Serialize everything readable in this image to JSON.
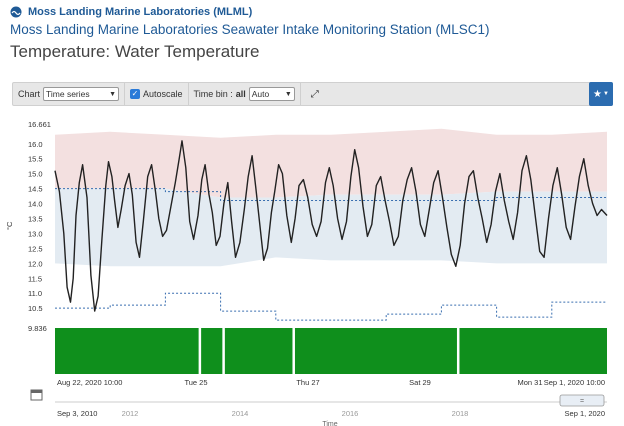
{
  "header": {
    "org_name": "Moss Landing Marine Laboratories (MLML)",
    "station_title": "Moss Landing Marine Laboratories Seawater Intake Monitoring Station (MLSC1)",
    "page_title": "Temperature: Water Temperature"
  },
  "toolbar": {
    "chart_label": "Chart",
    "chart_selected": "Time series",
    "autoscale_label": "Autoscale",
    "autoscale_checked": true,
    "time_bin_label": "Time bin :",
    "time_bin_all": "all",
    "time_bin_selected": "Auto",
    "expand_icon": "expand-arrows-icon",
    "star_icon": "star-icon"
  },
  "colors": {
    "series_line": "#222222",
    "above_band": "#f3e0e0",
    "normal_band": "#e3ebf2",
    "dotted_line": "#3a6fb0",
    "coverage_bar": "#0f8f1c"
  },
  "chart_data": {
    "type": "line",
    "title": "",
    "ylabel": "°C",
    "ylim": [
      9.836,
      16.661
    ],
    "y_ticks": [
      "16.661",
      "16.0",
      "15.5",
      "15.0",
      "14.5",
      "14.0",
      "13.5",
      "13.0",
      "12.5",
      "12.0",
      "11.5",
      "11.0",
      "10.5",
      "9.836"
    ],
    "x_ticks": [
      "Aug 22, 2020 10:00",
      "Tue 25",
      "Thu 27",
      "Sat 29",
      "Mon 31",
      "Sep 1, 2020 10:00"
    ],
    "navigator_labels": [
      "Sep 3, 2010",
      "2012",
      "2014",
      "2016",
      "2018",
      "Sep 1, 2020"
    ],
    "navigator_axis_label": "Time",
    "x_range_days": [
      0,
      10
    ],
    "series": [
      {
        "x_days": [
          0.0,
          0.08,
          0.16,
          0.22,
          0.28,
          0.33,
          0.38,
          0.44,
          0.5,
          0.58,
          0.65,
          0.72,
          0.78,
          0.85,
          0.92,
          0.97,
          1.03,
          1.08,
          1.14,
          1.2,
          1.27,
          1.34,
          1.4,
          1.47,
          1.53,
          1.6,
          1.68,
          1.75,
          1.82,
          1.88,
          1.95,
          2.02,
          2.1,
          2.18,
          2.25,
          2.3,
          2.37,
          2.44,
          2.51,
          2.59,
          2.66,
          2.72,
          2.79,
          2.85,
          2.92,
          2.99,
          3.06,
          3.13,
          3.2,
          3.27,
          3.35,
          3.43,
          3.5,
          3.57,
          3.64,
          3.71,
          3.78,
          3.85,
          3.92,
          3.98,
          4.05,
          4.12,
          4.2,
          4.28,
          4.35,
          4.42,
          4.5,
          4.58,
          4.66,
          4.74,
          4.82,
          4.9,
          4.97,
          5.04,
          5.12,
          5.2,
          5.28,
          5.36,
          5.43,
          5.5,
          5.58,
          5.66,
          5.74,
          5.82,
          5.9,
          5.98,
          6.06,
          6.14,
          6.22,
          6.3,
          6.38,
          6.46,
          6.54,
          6.62,
          6.7,
          6.78,
          6.86,
          6.94,
          7.02,
          7.1,
          7.18,
          7.26,
          7.34,
          7.42,
          7.5,
          7.58,
          7.66,
          7.74,
          7.82,
          7.9,
          7.98,
          8.06,
          8.14,
          8.22,
          8.3,
          8.38,
          8.46,
          8.54,
          8.62,
          8.7,
          8.78,
          8.86,
          8.94,
          9.02,
          9.1,
          9.18,
          9.26,
          9.34,
          9.42,
          9.5,
          9.58,
          9.66,
          9.74,
          9.82,
          9.9,
          10.0
        ],
        "values": [
          15.1,
          14.4,
          13.0,
          11.2,
          10.7,
          11.5,
          13.6,
          14.7,
          15.3,
          14.2,
          11.6,
          10.4,
          10.9,
          12.8,
          14.6,
          15.4,
          14.9,
          14.1,
          13.2,
          13.8,
          14.6,
          15.0,
          14.3,
          12.7,
          12.2,
          13.4,
          14.9,
          15.3,
          14.4,
          13.5,
          12.9,
          13.1,
          13.9,
          14.7,
          15.5,
          16.1,
          15.2,
          13.4,
          12.8,
          13.6,
          14.8,
          15.3,
          14.3,
          13.7,
          12.6,
          12.9,
          14.0,
          14.7,
          13.4,
          12.2,
          12.7,
          13.8,
          14.9,
          15.6,
          14.5,
          13.3,
          12.1,
          12.5,
          13.7,
          14.4,
          15.3,
          15.0,
          13.6,
          12.7,
          13.5,
          14.6,
          14.8,
          14.2,
          13.3,
          12.9,
          13.4,
          14.7,
          15.2,
          14.6,
          13.5,
          12.8,
          13.4,
          14.9,
          15.8,
          15.2,
          13.9,
          12.9,
          13.3,
          14.6,
          14.9,
          14.1,
          13.4,
          12.6,
          12.9,
          14.1,
          14.8,
          15.2,
          14.4,
          13.3,
          12.9,
          13.8,
          14.7,
          15.1,
          14.2,
          13.2,
          12.3,
          11.9,
          12.6,
          14.0,
          14.9,
          15.1,
          14.2,
          13.5,
          12.7,
          13.3,
          14.4,
          15.0,
          14.1,
          13.4,
          12.8,
          13.7,
          15.1,
          15.6,
          14.8,
          13.6,
          12.4,
          12.2,
          13.5,
          14.6,
          15.2,
          14.3,
          13.2,
          12.8,
          13.9,
          14.9,
          15.5,
          14.6,
          14.0,
          13.6,
          13.8,
          13.6
        ]
      }
    ],
    "normal_band_upper": [
      14.5,
      14.5,
      14.5,
      14.2,
      14.2,
      14.3,
      14.3,
      14.3,
      14.4,
      14.4,
      14.4
    ],
    "normal_band_lower": [
      12.0,
      11.9,
      11.9,
      11.9,
      12.2,
      12.1,
      12.1,
      12.1,
      12.0,
      12.0,
      12.0
    ],
    "upper_envelope": [
      16.3,
      16.4,
      16.3,
      16.2,
      16.3,
      16.3,
      16.4,
      16.5,
      16.3,
      16.3,
      16.4
    ],
    "dotted_upper": [
      14.5,
      14.5,
      14.4,
      14.1,
      14.1,
      14.1,
      14.1,
      14.1,
      14.2,
      14.2,
      14.4
    ],
    "dotted_lower": [
      10.5,
      10.6,
      11.0,
      10.4,
      10.1,
      10.1,
      10.3,
      10.6,
      10.2,
      10.7,
      10.5
    ],
    "coverage_gaps_days": [
      2.62,
      3.05,
      4.32,
      7.3
    ]
  }
}
